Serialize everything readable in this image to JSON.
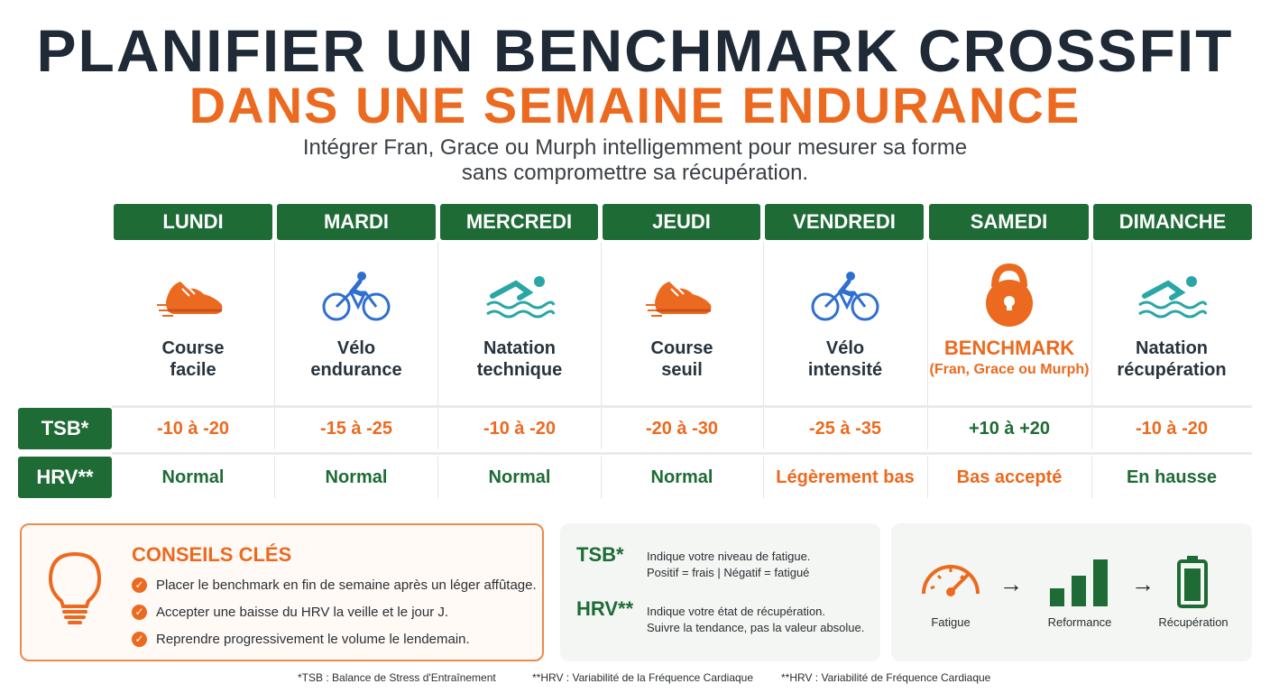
{
  "title": {
    "line1": "PLANIFIER UN BENCHMARK CROSSFIT",
    "line2": "DANS UNE SEMAINE ENDURANCE",
    "subtitle_line1": "Intégrer Fran, Grace ou Murph intelligemment pour mesurer sa forme",
    "subtitle_line2": "sans compromettre sa récupération."
  },
  "colors": {
    "green": "#1e6b35",
    "orange": "#ec6a1f",
    "blue": "#2f6fd0",
    "teal": "#2aa6a6",
    "dark": "#1f2a36"
  },
  "row_labels": {
    "tsb": "TSB*",
    "hrv": "HRV**"
  },
  "days": [
    {
      "name": "LUNDI",
      "icon": "running-shoe-icon",
      "activity_l1": "Course",
      "activity_l2": "facile",
      "tsb": "-10 à -20",
      "tsb_tone": "orange",
      "hrv": "Normal",
      "hrv_tone": "green"
    },
    {
      "name": "MARDI",
      "icon": "cyclist-icon",
      "activity_l1": "Vélo",
      "activity_l2": "endurance",
      "tsb": "-15 à -25",
      "tsb_tone": "orange",
      "hrv": "Normal",
      "hrv_tone": "green"
    },
    {
      "name": "MERCREDI",
      "icon": "swimmer-icon",
      "activity_l1": "Natation",
      "activity_l2": "technique",
      "tsb": "-10 à -20",
      "tsb_tone": "orange",
      "hrv": "Normal",
      "hrv_tone": "green"
    },
    {
      "name": "JEUDI",
      "icon": "running-shoe-icon",
      "activity_l1": "Course",
      "activity_l2": "seuil",
      "tsb": "-20 à -30",
      "tsb_tone": "orange",
      "hrv": "Normal",
      "hrv_tone": "green"
    },
    {
      "name": "VENDREDI",
      "icon": "cyclist-icon",
      "activity_l1": "Vélo",
      "activity_l2": "intensité",
      "tsb": "-25 à -35",
      "tsb_tone": "orange",
      "hrv": "Légèrement bas",
      "hrv_tone": "orange"
    },
    {
      "name": "SAMEDI",
      "icon": "kettlebell-icon",
      "activity_l1": "BENCHMARK",
      "activity_l2": "(Fran, Grace ou Murph)",
      "tsb": "+10 à +20",
      "tsb_tone": "green",
      "hrv": "Bas accepté",
      "hrv_tone": "orange"
    },
    {
      "name": "DIMANCHE",
      "icon": "swimmer-icon",
      "activity_l1": "Natation",
      "activity_l2": "récupération",
      "tsb": "-10 à -20",
      "tsb_tone": "orange",
      "hrv": "En hausse",
      "hrv_tone": "green"
    }
  ],
  "tips": {
    "title": "CONSEILS CLÉS",
    "items": [
      "Placer le benchmark en fin de semaine après un léger affûtage.",
      "Accepter une baisse du HRV la veille et le jour J.",
      "Reprendre progressivement le volume le lendemain."
    ]
  },
  "legend": {
    "tsb_key": "TSB*",
    "tsb_l1": "Indique votre niveau de fatigue.",
    "tsb_l2": "Positif = frais | Négatif = fatigué",
    "hrv_key": "HRV**",
    "hrv_l1": "Indique votre état de récupération.",
    "hrv_l2": "Suivre la tendance, pas la valeur absolue."
  },
  "flow": {
    "step1": "Fatigue",
    "step2": "Reformance",
    "step3": "Récupération",
    "arrow": "→"
  },
  "footnotes": {
    "f1": "*TSB : Balance de Stress d'Entraînement",
    "f2": "**HRV : Variabilité de la Fréquence Cardiaque",
    "f3": "**HRV : Variabilité de  Fréquence Cardiaque"
  }
}
